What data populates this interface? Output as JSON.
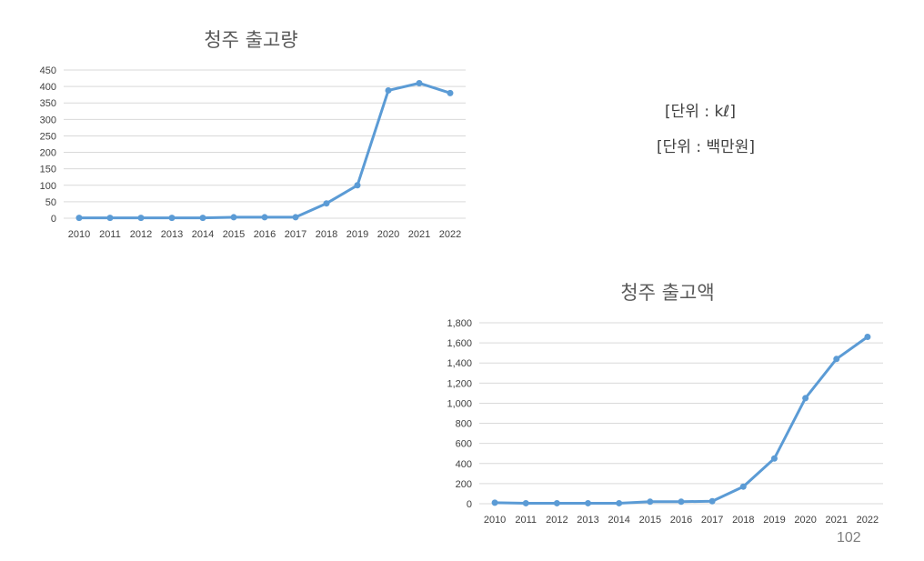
{
  "page": {
    "unit_volume": "[단위 : kℓ]",
    "unit_amount": "[단위 : 백만원]",
    "page_number": "102"
  },
  "chart_data": [
    {
      "type": "line",
      "title": "청주 출고량",
      "xlabel": "",
      "ylabel": "",
      "x": [
        "2010",
        "2011",
        "2012",
        "2013",
        "2014",
        "2015",
        "2016",
        "2017",
        "2018",
        "2019",
        "2020",
        "2021",
        "2022"
      ],
      "series": [
        {
          "values": [
            1,
            1,
            1,
            1,
            1,
            3,
            3,
            3,
            45,
            100,
            388,
            410,
            380
          ]
        }
      ],
      "ylim": [
        0,
        450
      ],
      "yticks": [
        0,
        50,
        100,
        150,
        200,
        250,
        300,
        350,
        400,
        450
      ],
      "ytick_labels": [
        "0",
        "50",
        "100",
        "150",
        "200",
        "250",
        "300",
        "350",
        "400",
        "450"
      ],
      "grid": true,
      "legend": "none",
      "color": "#5b9bd5"
    },
    {
      "type": "line",
      "title": "청주 출고액",
      "xlabel": "",
      "ylabel": "",
      "x": [
        "2010",
        "2011",
        "2012",
        "2013",
        "2014",
        "2015",
        "2016",
        "2017",
        "2018",
        "2019",
        "2020",
        "2021",
        "2022"
      ],
      "series": [
        {
          "values": [
            10,
            5,
            5,
            5,
            5,
            20,
            20,
            25,
            170,
            450,
            1050,
            1440,
            1660
          ]
        }
      ],
      "ylim": [
        0,
        1800
      ],
      "yticks": [
        0,
        200,
        400,
        600,
        800,
        1000,
        1200,
        1400,
        1600,
        1800
      ],
      "ytick_labels": [
        "0",
        "200",
        "400",
        "600",
        "800",
        "1,000",
        "1,200",
        "1,400",
        "1,600",
        "1,800"
      ],
      "grid": true,
      "legend": "none",
      "color": "#5b9bd5"
    }
  ]
}
